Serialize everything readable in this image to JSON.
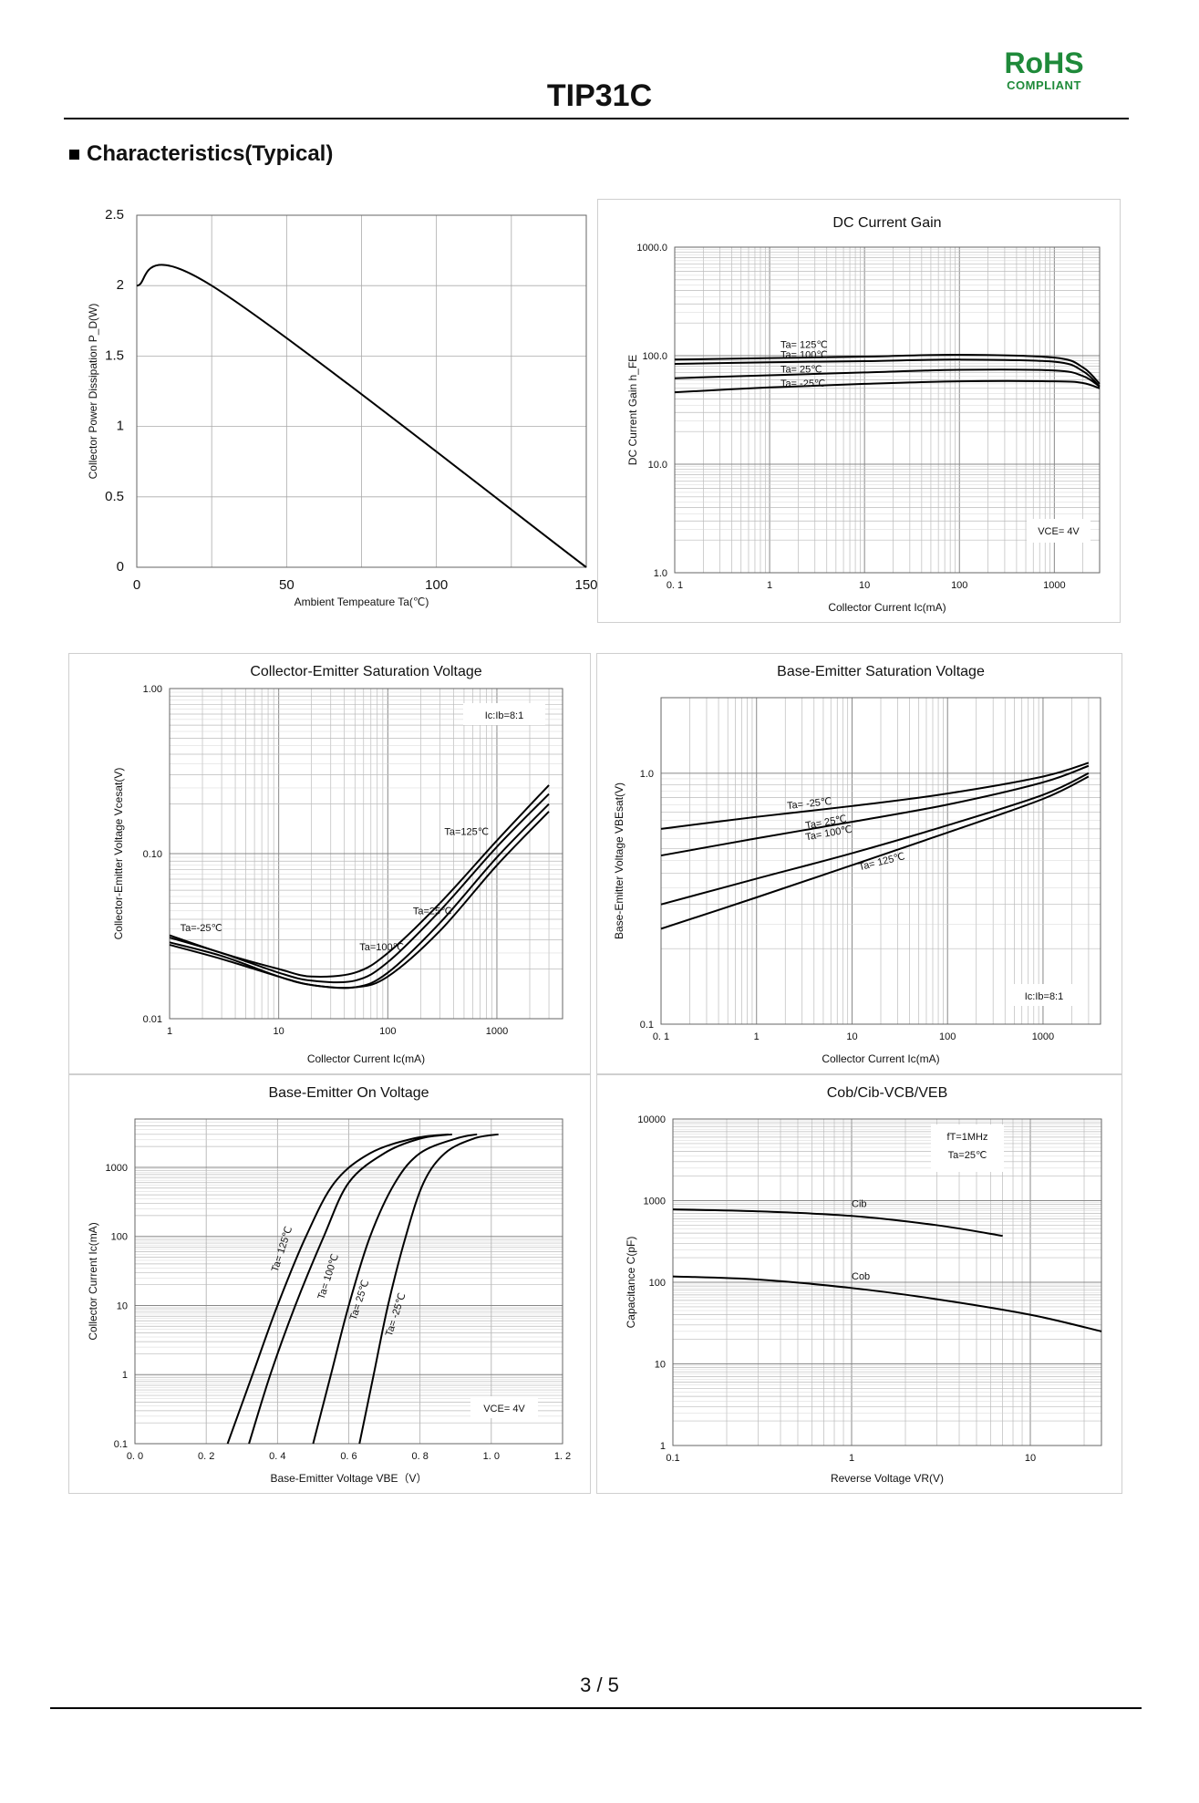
{
  "header": {
    "title": "TIP31C",
    "rohs": "RoHS",
    "compliant": "COMPLIANT"
  },
  "section_title": "Characteristics(Typical)",
  "page_number": "3 / 5",
  "chart_data": [
    {
      "type": "line",
      "title": "",
      "xlabel": "Ambient Tempeature Ta(℃)",
      "ylabel": "Collector Power Dissipation  P_D(W)",
      "xscale": "linear",
      "yscale": "linear",
      "xlim": [
        0,
        150
      ],
      "ylim": [
        0,
        2.5
      ],
      "xticks": [
        0,
        50,
        100,
        150
      ],
      "yticks": [
        0,
        0.5,
        1,
        1.5,
        2,
        2.5
      ],
      "xtick_labels": [
        "0",
        "50",
        "100",
        "150"
      ],
      "ytick_labels": [
        "0",
        "0.5",
        "1",
        "1.5",
        "2",
        "2.5"
      ],
      "grid": true,
      "series": [
        {
          "name": "Pd",
          "x": [
            0,
            25,
            150
          ],
          "y": [
            2,
            2,
            0
          ]
        }
      ]
    },
    {
      "type": "line",
      "title": "DC Current Gain",
      "xlabel": "Collector Current   Ic(mA)",
      "ylabel": "DC Current Gain   h_FE",
      "xscale": "log",
      "yscale": "log",
      "xlim": [
        0.1,
        3000
      ],
      "ylim": [
        1,
        1000
      ],
      "xticks": [
        0.1,
        1,
        10,
        100,
        1000
      ],
      "yticks": [
        1,
        10,
        100,
        1000
      ],
      "xtick_labels": [
        "0. 1",
        "1",
        "10",
        "100",
        "1000"
      ],
      "ytick_labels": [
        "1.0",
        "10.0",
        "100.0",
        "1000.0"
      ],
      "grid": true,
      "box_text": [
        "VCE= 4V"
      ],
      "series": [
        {
          "name": "Ta= 125℃",
          "x": [
            0.1,
            1,
            10,
            100,
            1000,
            2000,
            3000
          ],
          "y": [
            92,
            95,
            98,
            102,
            96,
            78,
            55
          ]
        },
        {
          "name": "Ta= 100℃",
          "x": [
            0.1,
            1,
            10,
            100,
            1000,
            2000,
            3000
          ],
          "y": [
            84,
            87,
            89,
            92,
            88,
            72,
            52
          ]
        },
        {
          "name": "Ta= 25℃",
          "x": [
            0.1,
            1,
            10,
            100,
            1000,
            2000,
            3000
          ],
          "y": [
            62,
            66,
            70,
            74,
            73,
            65,
            52
          ]
        },
        {
          "name": "Ta= -25℃",
          "x": [
            0.1,
            1,
            10,
            100,
            1000,
            2000,
            3000
          ],
          "y": [
            46,
            51,
            55,
            58,
            58,
            56,
            50
          ]
        }
      ]
    },
    {
      "type": "line",
      "title": "Collector-Emitter Saturation Voltage",
      "xlabel": "Collector Current   Ic(mA)",
      "ylabel": "Collector-Emitter Voltage  Vcesat(V)",
      "xscale": "log",
      "yscale": "log",
      "xlim": [
        1,
        4000
      ],
      "ylim": [
        0.01,
        1
      ],
      "xticks": [
        1,
        10,
        100,
        1000
      ],
      "yticks": [
        0.01,
        0.1,
        1
      ],
      "xtick_labels": [
        "1",
        "10",
        "100",
        "1000"
      ],
      "ytick_labels": [
        "0.01",
        "0.10",
        "1.00"
      ],
      "grid": true,
      "box_text": [
        "Ic:Ib=8:1"
      ],
      "series": [
        {
          "name": "Ta=125℃",
          "x": [
            1,
            3,
            10,
            20,
            50,
            100,
            300,
            1000,
            3000
          ],
          "y": [
            0.032,
            0.025,
            0.02,
            0.018,
            0.019,
            0.025,
            0.05,
            0.12,
            0.26
          ]
        },
        {
          "name": "Ta=100℃",
          "x": [
            1,
            3,
            10,
            20,
            50,
            100,
            300,
            1000,
            3000
          ],
          "y": [
            0.031,
            0.025,
            0.019,
            0.017,
            0.017,
            0.022,
            0.045,
            0.11,
            0.23
          ]
        },
        {
          "name": "Ta=25℃",
          "x": [
            1,
            3,
            10,
            20,
            50,
            100,
            300,
            1000,
            3000
          ],
          "y": [
            0.029,
            0.024,
            0.018,
            0.016,
            0.0155,
            0.019,
            0.038,
            0.095,
            0.2
          ]
        },
        {
          "name": "Ta=-25℃",
          "x": [
            1,
            3,
            10,
            20,
            50,
            100,
            300,
            1000,
            3000
          ],
          "y": [
            0.028,
            0.023,
            0.018,
            0.016,
            0.0155,
            0.018,
            0.034,
            0.085,
            0.18
          ]
        }
      ]
    },
    {
      "type": "line",
      "title": "Base-Emitter Saturation Voltage",
      "xlabel": "Collector Current   Ic(mA)",
      "ylabel": "Base-Emitter Voltage  VBEsat(V)",
      "xscale": "log",
      "yscale": "log",
      "xlim": [
        0.1,
        4000
      ],
      "ylim": [
        0.1,
        2
      ],
      "xticks": [
        0.1,
        1,
        10,
        100,
        1000
      ],
      "yticks": [
        0.1,
        1
      ],
      "xtick_labels": [
        "0. 1",
        "1",
        "10",
        "100",
        "1000"
      ],
      "ytick_labels": [
        "0.1",
        "1.0"
      ],
      "grid": true,
      "box_text": [
        "Ic:Ib=8:1"
      ],
      "series": [
        {
          "name": "Ta= -25℃",
          "x": [
            0.1,
            1,
            10,
            100,
            1000,
            3000
          ],
          "y": [
            0.6,
            0.67,
            0.74,
            0.83,
            0.97,
            1.1
          ]
        },
        {
          "name": "Ta= 25℃",
          "x": [
            0.1,
            1,
            10,
            100,
            1000,
            3000
          ],
          "y": [
            0.47,
            0.55,
            0.64,
            0.75,
            0.92,
            1.07
          ]
        },
        {
          "name": "Ta= 100℃",
          "x": [
            0.1,
            1,
            10,
            100,
            1000,
            3000
          ],
          "y": [
            0.3,
            0.38,
            0.48,
            0.62,
            0.82,
            1.0
          ]
        },
        {
          "name": "Ta= 125℃",
          "x": [
            0.1,
            1,
            10,
            100,
            1000,
            3000
          ],
          "y": [
            0.24,
            0.32,
            0.43,
            0.58,
            0.79,
            0.97
          ]
        }
      ]
    },
    {
      "type": "line",
      "title": "Base-Emitter On Voltage",
      "xlabel": "Base-Emitter Voltage  VBE（V）",
      "ylabel": "Collector Current   Ic(mA)",
      "xscale": "linear",
      "yscale": "log",
      "xlim": [
        0,
        1.2
      ],
      "ylim": [
        0.1,
        5000
      ],
      "xticks": [
        0,
        0.2,
        0.4,
        0.6,
        0.8,
        1.0,
        1.2
      ],
      "yticks": [
        0.1,
        1,
        10,
        100,
        1000
      ],
      "xtick_labels": [
        "0. 0",
        "0. 2",
        "0. 4",
        "0. 6",
        "0. 8",
        "1. 0",
        "1. 2"
      ],
      "ytick_labels": [
        "0.1",
        "1",
        "10",
        "100",
        "1000"
      ],
      "grid": true,
      "box_text": [
        "VCE= 4V"
      ],
      "series": [
        {
          "name": "Ta= 125℃",
          "x": [
            0.26,
            0.33,
            0.4,
            0.48,
            0.56,
            0.66,
            0.78,
            0.88
          ],
          "y": [
            0.1,
            1,
            10,
            100,
            600,
            1600,
            2600,
            3000
          ]
        },
        {
          "name": "Ta= 100℃",
          "x": [
            0.32,
            0.38,
            0.45,
            0.53,
            0.6,
            0.7,
            0.8,
            0.89
          ],
          "y": [
            0.1,
            1,
            10,
            100,
            600,
            1600,
            2600,
            3000
          ]
        },
        {
          "name": "Ta= 25℃",
          "x": [
            0.5,
            0.55,
            0.6,
            0.66,
            0.73,
            0.8,
            0.9,
            0.96
          ],
          "y": [
            0.1,
            1,
            10,
            100,
            600,
            1600,
            2600,
            3000
          ]
        },
        {
          "name": "Ta= -25℃",
          "x": [
            0.63,
            0.67,
            0.71,
            0.76,
            0.81,
            0.87,
            0.95,
            1.02
          ],
          "y": [
            0.1,
            1,
            10,
            100,
            600,
            1600,
            2600,
            3000
          ]
        }
      ]
    },
    {
      "type": "line",
      "title": "Cob/Cib-VCB/VEB",
      "xlabel": "Reverse Voltage  VR(V)",
      "ylabel": "Capacitance  C(pF)",
      "xscale": "log",
      "yscale": "log",
      "xlim": [
        0.1,
        25
      ],
      "ylim": [
        1,
        10000
      ],
      "xticks": [
        0.1,
        1,
        10
      ],
      "yticks": [
        1,
        10,
        100,
        1000,
        10000
      ],
      "xtick_labels": [
        "0.1",
        "1",
        "10"
      ],
      "ytick_labels": [
        "1",
        "10",
        "100",
        "1000",
        "10000"
      ],
      "grid": true,
      "box_text": [
        "fT=1MHz",
        "Ta=25℃"
      ],
      "series": [
        {
          "name": "Cib",
          "x": [
            0.1,
            0.3,
            1,
            3,
            7
          ],
          "y": [
            780,
            740,
            650,
            500,
            370
          ]
        },
        {
          "name": "Cob",
          "x": [
            0.1,
            0.3,
            1,
            3,
            10,
            25
          ],
          "y": [
            118,
            108,
            85,
            62,
            40,
            25
          ]
        }
      ]
    }
  ]
}
